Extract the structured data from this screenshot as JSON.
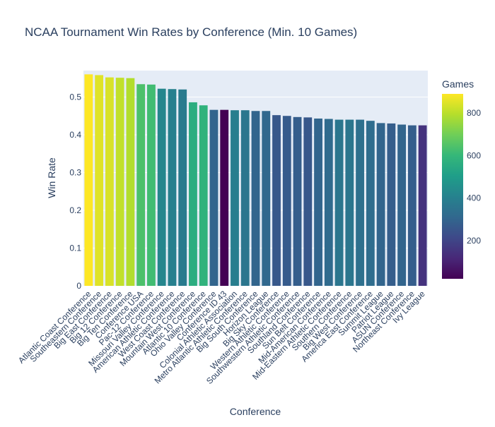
{
  "chart_data": {
    "type": "bar",
    "title": "NCAA Tournament Win Rates by Conference (Min. 10 Games)",
    "xlabel": "Conference",
    "ylabel": "Win Rate",
    "ylim": [
      0,
      0.57
    ],
    "yticks": [
      0,
      0.1,
      0.2,
      0.3,
      0.4,
      0.5
    ],
    "yticklabels": [
      "0",
      "0.1",
      "0.2",
      "0.3",
      "0.4",
      "0.5"
    ],
    "grid": true,
    "colorbar": {
      "title": "Games",
      "colorscale": "viridis",
      "range": [
        20,
        890
      ],
      "ticks": [
        200,
        400,
        600,
        800
      ],
      "ticklabels": [
        "200",
        "400",
        "600",
        "800"
      ]
    },
    "categories": [
      "Atlantic Coast Conference",
      "Southeastern Conference",
      "Big East Conference",
      "Big 12 Conference",
      "Big Ten Conference",
      "Conference USA",
      "Pac-12 Conference",
      "Missouri Valley Conference",
      "American Athletic Conference",
      "West Coast Conference",
      "Mountain West Conference",
      "Atlantic 10 Conference",
      "Ohio Valley Conference",
      "Conference ID 43",
      "Colonial Athletic Association",
      "Metro Atlantic Athletic Conference",
      "Big South Conference",
      "Horizon League",
      "Big Sky Conference",
      "Western Athletic Conference",
      "Southwestern Athletic Conference",
      "Southland Conference",
      "Sun Belt Conference",
      "Mid-American Conference",
      "Mid-Eastern Athletic Conference",
      "Southern Conference",
      "Big West Conference",
      "America East Conference",
      "Summit League",
      "Patriot League",
      "ASUN Conference",
      "Northeast Conference",
      "Ivy League"
    ],
    "values": [
      0.56,
      0.558,
      0.552,
      0.551,
      0.55,
      0.534,
      0.533,
      0.522,
      0.521,
      0.52,
      0.486,
      0.478,
      0.466,
      0.466,
      0.465,
      0.465,
      0.463,
      0.463,
      0.452,
      0.45,
      0.447,
      0.446,
      0.443,
      0.442,
      0.44,
      0.44,
      0.44,
      0.437,
      0.431,
      0.43,
      0.427,
      0.425,
      0.425
    ],
    "games": [
      890,
      850,
      840,
      810,
      790,
      640,
      620,
      420,
      400,
      380,
      560,
      580,
      300,
      20,
      390,
      360,
      300,
      310,
      260,
      270,
      280,
      260,
      300,
      320,
      360,
      360,
      340,
      330,
      300,
      280,
      300,
      280,
      150
    ]
  }
}
